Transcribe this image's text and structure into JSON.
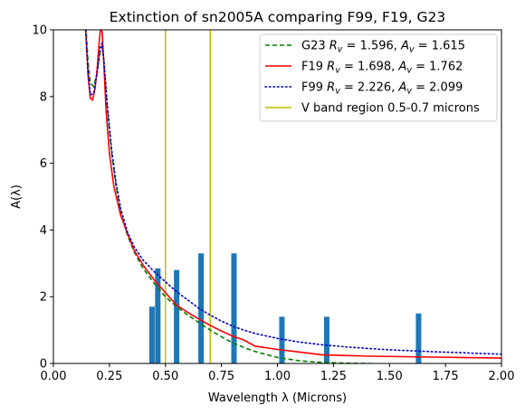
{
  "chart_data": {
    "type": "line",
    "title": "Extinction of sn2005A comparing F99, F19, G23",
    "xlabel": "Wavelength λ (Microns)",
    "ylabel": "A(λ)",
    "xlim": [
      0,
      2.0
    ],
    "ylim": [
      0,
      10
    ],
    "x_ticks": [
      0,
      0.25,
      0.5,
      0.75,
      1.0,
      1.25,
      1.5,
      1.75,
      2.0
    ],
    "x_tick_labels": [
      "0.00",
      "0.25",
      "0.50",
      "0.75",
      "1.00",
      "1.25",
      "1.50",
      "1.75",
      "2.00"
    ],
    "y_ticks": [
      0,
      2,
      4,
      6,
      8,
      10
    ],
    "y_tick_labels": [
      "0",
      "2",
      "4",
      "6",
      "8",
      "10"
    ],
    "grid": false,
    "legend_position": "top-right",
    "series": [
      {
        "name": "G23 R_v = 1.596, A_v = 1.615",
        "legend_main": "G23",
        "legend_rv": "1.596",
        "legend_av": "1.615",
        "color": "#008000",
        "style": "dashed",
        "x": [
          0.12,
          0.14,
          0.155,
          0.165,
          0.18,
          0.195,
          0.21,
          0.217,
          0.225,
          0.24,
          0.26,
          0.28,
          0.3,
          0.33,
          0.36,
          0.4,
          0.45,
          0.5,
          0.55,
          0.6,
          0.65,
          0.7,
          0.75,
          0.8,
          0.85,
          0.9,
          1.0,
          1.1,
          1.2,
          1.3,
          1.4,
          1.5,
          1.6,
          1.7,
          1.8,
          1.9,
          2.0
        ],
        "y": [
          14.0,
          10.6,
          9.0,
          8.4,
          8.3,
          8.7,
          9.4,
          9.5,
          9.1,
          7.7,
          6.3,
          5.3,
          4.55,
          3.85,
          3.35,
          2.85,
          2.4,
          2.0,
          1.7,
          1.45,
          1.22,
          1.0,
          0.8,
          0.62,
          0.48,
          0.36,
          0.18,
          0.08,
          0.03,
          0.01,
          0.0,
          -0.02,
          -0.04,
          -0.06,
          -0.08,
          -0.1,
          -0.12
        ]
      },
      {
        "name": "F19 R_v = 1.698, A_v = 1.762",
        "legend_main": "F19",
        "legend_rv": "1.698",
        "legend_av": "1.762",
        "color": "#ff0000",
        "style": "solid",
        "x": [
          0.12,
          0.14,
          0.155,
          0.165,
          0.175,
          0.185,
          0.195,
          0.205,
          0.212,
          0.218,
          0.225,
          0.235,
          0.25,
          0.27,
          0.3,
          0.33,
          0.36,
          0.4,
          0.45,
          0.5,
          0.55,
          0.6,
          0.65,
          0.7,
          0.75,
          0.8,
          0.85,
          0.9,
          1.0,
          1.1,
          1.2,
          1.3,
          1.4,
          1.5,
          1.6,
          1.7,
          1.8,
          1.9,
          2.0
        ],
        "y": [
          14.0,
          10.5,
          8.6,
          7.95,
          7.9,
          8.2,
          8.8,
          9.7,
          10.1,
          9.9,
          9.0,
          7.6,
          6.3,
          5.3,
          4.45,
          3.9,
          3.4,
          2.95,
          2.5,
          2.12,
          1.75,
          1.53,
          1.33,
          1.14,
          0.97,
          0.82,
          0.7,
          0.52,
          0.42,
          0.34,
          0.26,
          0.24,
          0.22,
          0.21,
          0.2,
          0.19,
          0.18,
          0.17,
          0.16
        ]
      },
      {
        "name": "F99 R_v = 2.226, A_v = 2.099",
        "legend_main": "F99",
        "legend_rv": "2.226",
        "legend_av": "2.099",
        "color": "#0000cc",
        "style": "dotted",
        "x": [
          0.12,
          0.14,
          0.155,
          0.165,
          0.18,
          0.195,
          0.21,
          0.217,
          0.225,
          0.24,
          0.26,
          0.28,
          0.3,
          0.33,
          0.36,
          0.4,
          0.45,
          0.5,
          0.55,
          0.6,
          0.65,
          0.7,
          0.75,
          0.8,
          0.85,
          0.9,
          1.0,
          1.1,
          1.2,
          1.3,
          1.4,
          1.5,
          1.6,
          1.7,
          1.8,
          1.9,
          2.0
        ],
        "y": [
          14.0,
          10.5,
          8.7,
          8.05,
          8.1,
          8.7,
          9.5,
          9.6,
          9.1,
          7.8,
          6.4,
          5.4,
          4.65,
          3.95,
          3.5,
          3.1,
          2.75,
          2.45,
          2.15,
          1.9,
          1.65,
          1.45,
          1.27,
          1.12,
          1.0,
          0.9,
          0.75,
          0.64,
          0.56,
          0.5,
          0.45,
          0.41,
          0.38,
          0.35,
          0.33,
          0.3,
          0.28
        ]
      },
      {
        "name": "V band region 0.5-0.7 microns",
        "color": "#bfbf00",
        "style": "vline",
        "x": [
          0.5,
          0.7
        ]
      }
    ],
    "bars": {
      "color": "#1f77b4",
      "x": [
        0.44,
        0.466,
        0.55,
        0.659,
        0.806,
        1.02,
        1.22,
        1.63
      ],
      "values": [
        1.7,
        2.85,
        2.8,
        3.3,
        3.3,
        1.4,
        1.4,
        1.5
      ]
    }
  }
}
